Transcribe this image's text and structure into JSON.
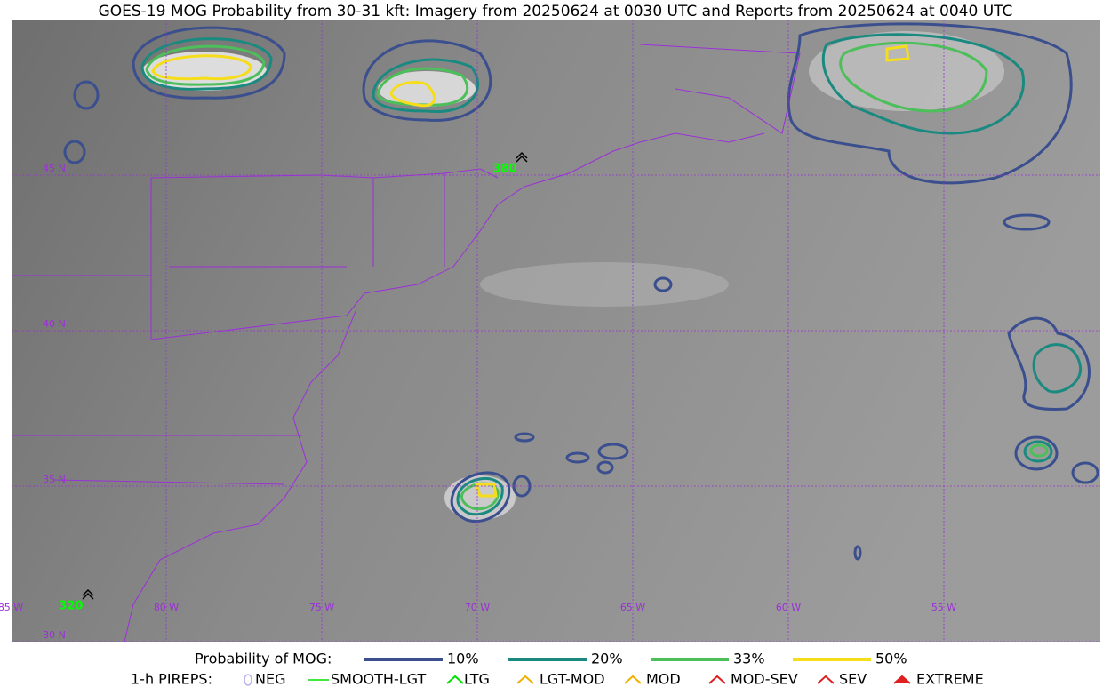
{
  "title": "GOES-19 MOG Probability from 30-31 kft: Imagery from 20250624 at 0030 UTC and Reports from 20250624 at 0040 UTC",
  "grid": {
    "lat_labels": [
      "45 N",
      "40 N",
      "35 N",
      "30 N"
    ],
    "lon_labels": [
      "85 W",
      "80 W",
      "75 W",
      "70 W",
      "65 W",
      "60 W",
      "55 W"
    ]
  },
  "reports": [
    {
      "label": "380"
    },
    {
      "label": "320"
    }
  ],
  "legend": {
    "probability": {
      "title": "Probability of MOG:",
      "items": [
        "10%",
        "20%",
        "33%",
        "50%"
      ]
    },
    "pireps": {
      "title": "1-h PIREPS:",
      "items": [
        "NEG",
        "SMOOTH-LGT",
        "LTG",
        "LGT-MOD",
        "MOD",
        "MOD-SEV",
        "SEV",
        "EXTREME"
      ]
    }
  }
}
